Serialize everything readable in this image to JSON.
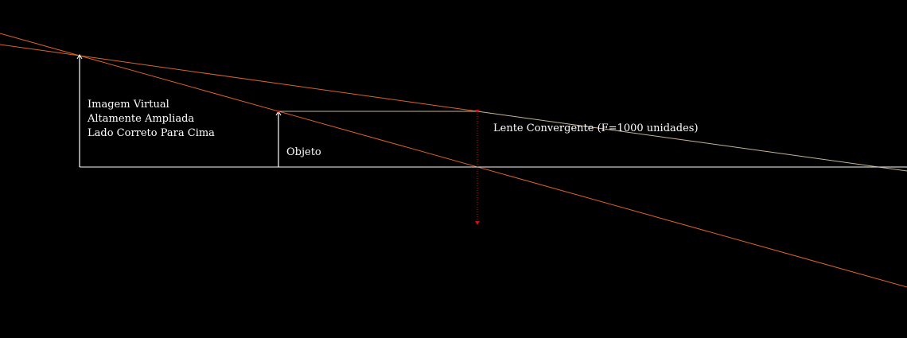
{
  "diagram": {
    "labels": {
      "image_line1": "Imagem Virtual",
      "image_line2": "Altamente Ampliada",
      "image_line3": "Lado Correto Para Cima",
      "object": "Objeto",
      "lens": "Lente Convergente (F=1000 unidades)"
    },
    "colors": {
      "background": "#000000",
      "axis": "#c8c8c8",
      "object_arrow": "#ffffff",
      "image_arrow": "#ffffff",
      "ray_orange": "#d9642a",
      "ray_pale": "#c8b496",
      "lens_marker": "#cc1111"
    }
  }
}
